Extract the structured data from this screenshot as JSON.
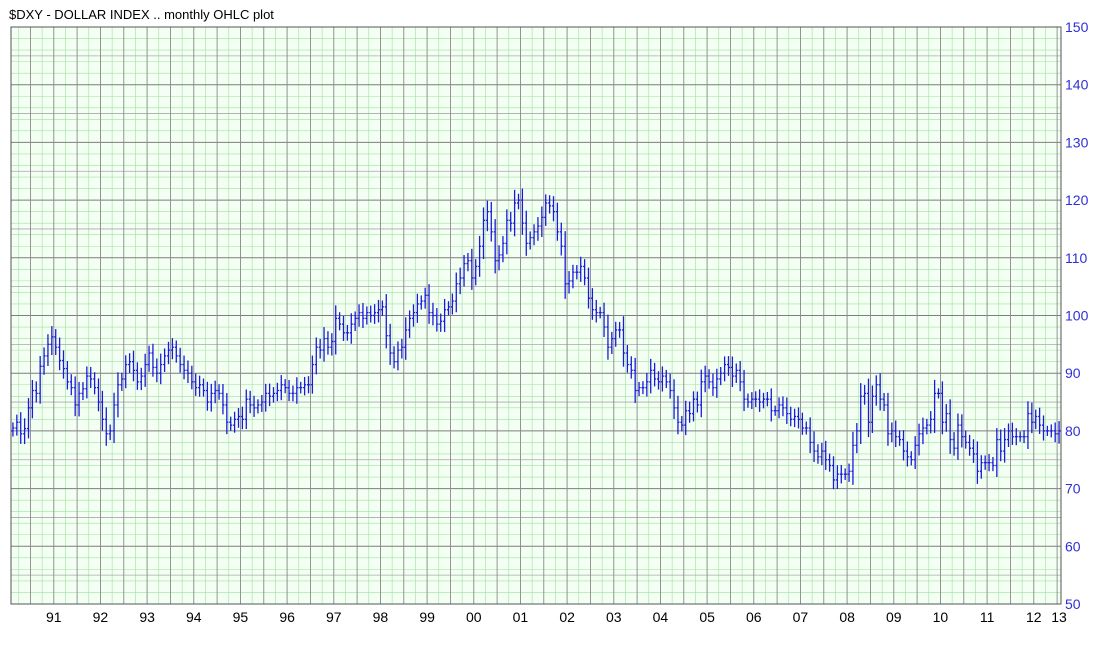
{
  "chart_data": {
    "type": "ohlc",
    "title": "$DXY - DOLLAR INDEX .. monthly OHLC plot",
    "xlabel": "",
    "ylabel": "",
    "ylim": [
      50,
      150
    ],
    "y_ticks": [
      "150",
      "140",
      "130",
      "120",
      "110",
      "100",
      "90",
      "80",
      "70",
      "60",
      "50"
    ],
    "x_ticks": [
      "91",
      "92",
      "93",
      "94",
      "95",
      "96",
      "97",
      "98",
      "99",
      "00",
      "01",
      "02",
      "03",
      "04",
      "05",
      "06",
      "07",
      "08",
      "09",
      "10",
      "11",
      "12",
      "13"
    ],
    "x_range": [
      "1990-08",
      "2013-01"
    ],
    "grid": true,
    "y_axis_side": "right",
    "series": [
      {
        "color": "#1a1adc",
        "closes": [
          [
            1990,
            [
              null,
              null,
              null,
              null,
              null,
              null,
              null,
              80.5,
              81.5,
              79.5,
              80.4,
              84.0
            ]
          ],
          [
            1991,
            [
              87.0,
              86.5,
              91.2,
              93.0,
              95.0,
              96.3,
              94.5,
              92.2,
              90.8,
              88.5,
              87.5,
              84.5
            ]
          ],
          [
            1992,
            [
              86.5,
              87.3,
              89.5,
              89.0,
              87.5,
              85.0,
              82.0,
              79.5,
              80.0,
              84.5,
              88.0,
              89.0
            ]
          ],
          [
            1993,
            [
              91.5,
              92.0,
              90.5,
              88.5,
              89.5,
              91.5,
              93.5,
              91.0,
              90.0,
              91.5,
              93.0,
              94.0
            ]
          ],
          [
            1994,
            [
              94.5,
              93.0,
              91.5,
              90.5,
              90.0,
              88.5,
              87.5,
              88.0,
              87.0,
              85.0,
              86.5,
              87.0
            ]
          ],
          [
            1995,
            [
              86.5,
              84.5,
              81.5,
              81.0,
              82.0,
              82.5,
              82.0,
              85.5,
              84.5,
              84.0,
              84.5,
              85.0
            ]
          ],
          [
            1996,
            [
              86.5,
              86.0,
              86.5,
              87.0,
              88.0,
              87.5,
              86.5,
              86.5,
              87.5,
              87.5,
              88.0,
              88.0
            ]
          ],
          [
            1997,
            [
              91.5,
              94.5,
              94.0,
              96.0,
              94.5,
              95.5,
              99.5,
              98.5,
              97.0,
              97.0,
              98.5,
              99.5
            ]
          ],
          [
            1998,
            [
              100.5,
              99.5,
              100.5,
              100.0,
              100.5,
              101.0,
              101.5,
              96.5,
              93.5,
              92.0,
              94.0,
              94.5
            ]
          ],
          [
            1999,
            [
              97.5,
              99.5,
              100.5,
              102.0,
              102.5,
              103.5,
              100.5,
              100.0,
              98.5,
              99.0,
              101.0,
              101.5
            ]
          ],
          [
            2000,
            [
              102.5,
              105.5,
              106.5,
              109.0,
              109.5,
              106.5,
              108.5,
              112.0,
              116.5,
              118.0,
              114.5,
              109.5
            ]
          ],
          [
            2001,
            [
              110.5,
              112.5,
              116.5,
              116.0,
              119.5,
              120.0,
              116.0,
              112.5,
              113.5,
              114.5,
              115.5,
              117.0
            ]
          ],
          [
            2002,
            [
              119.5,
              119.0,
              118.0,
              114.5,
              112.0,
              105.5,
              106.0,
              107.5,
              107.5,
              108.5,
              106.5,
              103.0
            ]
          ],
          [
            2003,
            [
              101.0,
              100.5,
              100.5,
              98.0,
              94.5,
              96.0,
              97.5,
              97.5,
              93.5,
              91.5,
              90.5,
              87.0
            ]
          ],
          [
            2004,
            [
              87.5,
              87.5,
              88.5,
              90.5,
              89.0,
              88.5,
              89.5,
              88.5,
              87.0,
              84.0,
              81.5,
              81.0
            ]
          ],
          [
            2005,
            [
              83.5,
              83.0,
              85.5,
              84.5,
              88.5,
              89.5,
              88.5,
              87.5,
              89.0,
              90.0,
              91.5,
              91.0
            ]
          ],
          [
            2006,
            [
              89.5,
              90.5,
              88.5,
              85.5,
              85.0,
              85.5,
              85.5,
              85.0,
              85.5,
              85.5,
              83.5,
              83.5
            ]
          ],
          [
            2007,
            [
              84.5,
              84.0,
              83.0,
              82.0,
              82.5,
              82.0,
              80.5,
              80.5,
              78.0,
              76.5,
              75.5,
              76.5
            ]
          ],
          [
            2008,
            [
              75.0,
              74.0,
              71.5,
              72.5,
              72.5,
              72.5,
              73.0,
              77.5,
              80.0,
              86.0,
              86.5,
              81.5
            ]
          ],
          [
            2009,
            [
              86.0,
              88.0,
              85.5,
              84.5,
              79.5,
              80.0,
              79.0,
              78.5,
              76.5,
              75.5,
              75.0,
              77.5
            ]
          ],
          [
            2010,
            [
              79.5,
              80.5,
              81.0,
              82.0,
              86.5,
              86.5,
              81.5,
              83.0,
              78.5,
              77.0,
              81.0,
              79.0
            ]
          ],
          [
            2011,
            [
              78.0,
              77.0,
              76.0,
              73.0,
              74.5,
              74.5,
              74.5,
              74.0,
              78.5,
              76.5,
              78.5,
              80.0
            ]
          ],
          [
            2012,
            [
              79.0,
              79.0,
              79.0,
              79.0,
              83.0,
              81.5,
              82.5,
              81.0,
              80.0,
              80.0,
              80.0,
              79.5
            ]
          ],
          [
            2013,
            [
              80.0,
              null,
              null,
              null,
              null,
              null,
              null,
              null,
              null,
              null,
              null,
              null
            ]
          ]
        ]
      }
    ]
  }
}
